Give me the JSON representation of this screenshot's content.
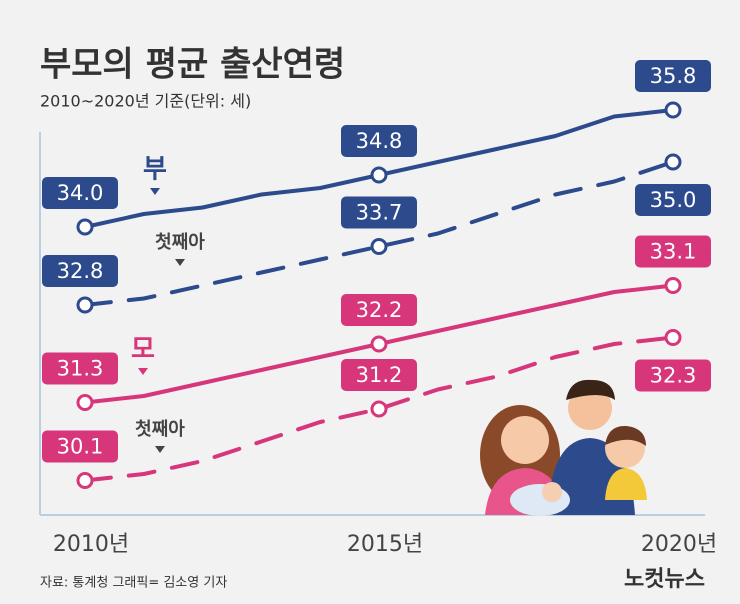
{
  "chart_data": {
    "type": "line",
    "title": "부모의 평균 출산연령",
    "subtitle": "2010~2020년 기준(단위: 세)",
    "source": "자료: 통계청  그래픽= 김소영 기자",
    "logo": "노컷뉴스",
    "x": [
      2010,
      2011,
      2012,
      2013,
      2014,
      2015,
      2016,
      2017,
      2018,
      2019,
      2020
    ],
    "xlim": [
      2010,
      2020
    ],
    "xticks": [
      {
        "value": 2010,
        "label": "2010년"
      },
      {
        "value": 2015,
        "label": "2015년"
      },
      {
        "value": 2020,
        "label": "2020년"
      }
    ],
    "ylim": [
      29.6,
      36.6
    ],
    "series": [
      {
        "name": "부",
        "color": "#2c4a8c",
        "line_style": "solid",
        "values": [
          34.0,
          34.2,
          34.3,
          34.5,
          34.6,
          34.8,
          35.0,
          35.2,
          35.4,
          35.7,
          35.8
        ],
        "value_labels": [
          "34.0",
          null,
          null,
          null,
          null,
          "34.8",
          null,
          null,
          null,
          null,
          "35.8"
        ]
      },
      {
        "name": "첫째아",
        "color": "#2c4a8c",
        "line_style": "dashed",
        "values": [
          32.8,
          32.9,
          33.1,
          33.3,
          33.5,
          33.7,
          33.9,
          34.2,
          34.5,
          34.7,
          35.0
        ],
        "value_labels": [
          "32.8",
          null,
          null,
          null,
          null,
          "33.7",
          null,
          null,
          null,
          null,
          "35.0"
        ]
      },
      {
        "name": "모",
        "color": "#d7367a",
        "line_style": "solid",
        "values": [
          31.3,
          31.4,
          31.6,
          31.8,
          32.0,
          32.2,
          32.4,
          32.6,
          32.8,
          33.0,
          33.1
        ],
        "value_labels": [
          "31.3",
          null,
          null,
          null,
          null,
          "32.2",
          null,
          null,
          null,
          null,
          "33.1"
        ]
      },
      {
        "name": "첫째아",
        "color": "#d7367a",
        "line_style": "dashed",
        "values": [
          30.1,
          30.2,
          30.4,
          30.7,
          31.0,
          31.2,
          31.5,
          31.7,
          32.0,
          32.2,
          32.3
        ],
        "value_labels": [
          "30.1",
          null,
          null,
          null,
          null,
          "31.2",
          null,
          null,
          null,
          null,
          "32.3"
        ]
      }
    ]
  }
}
